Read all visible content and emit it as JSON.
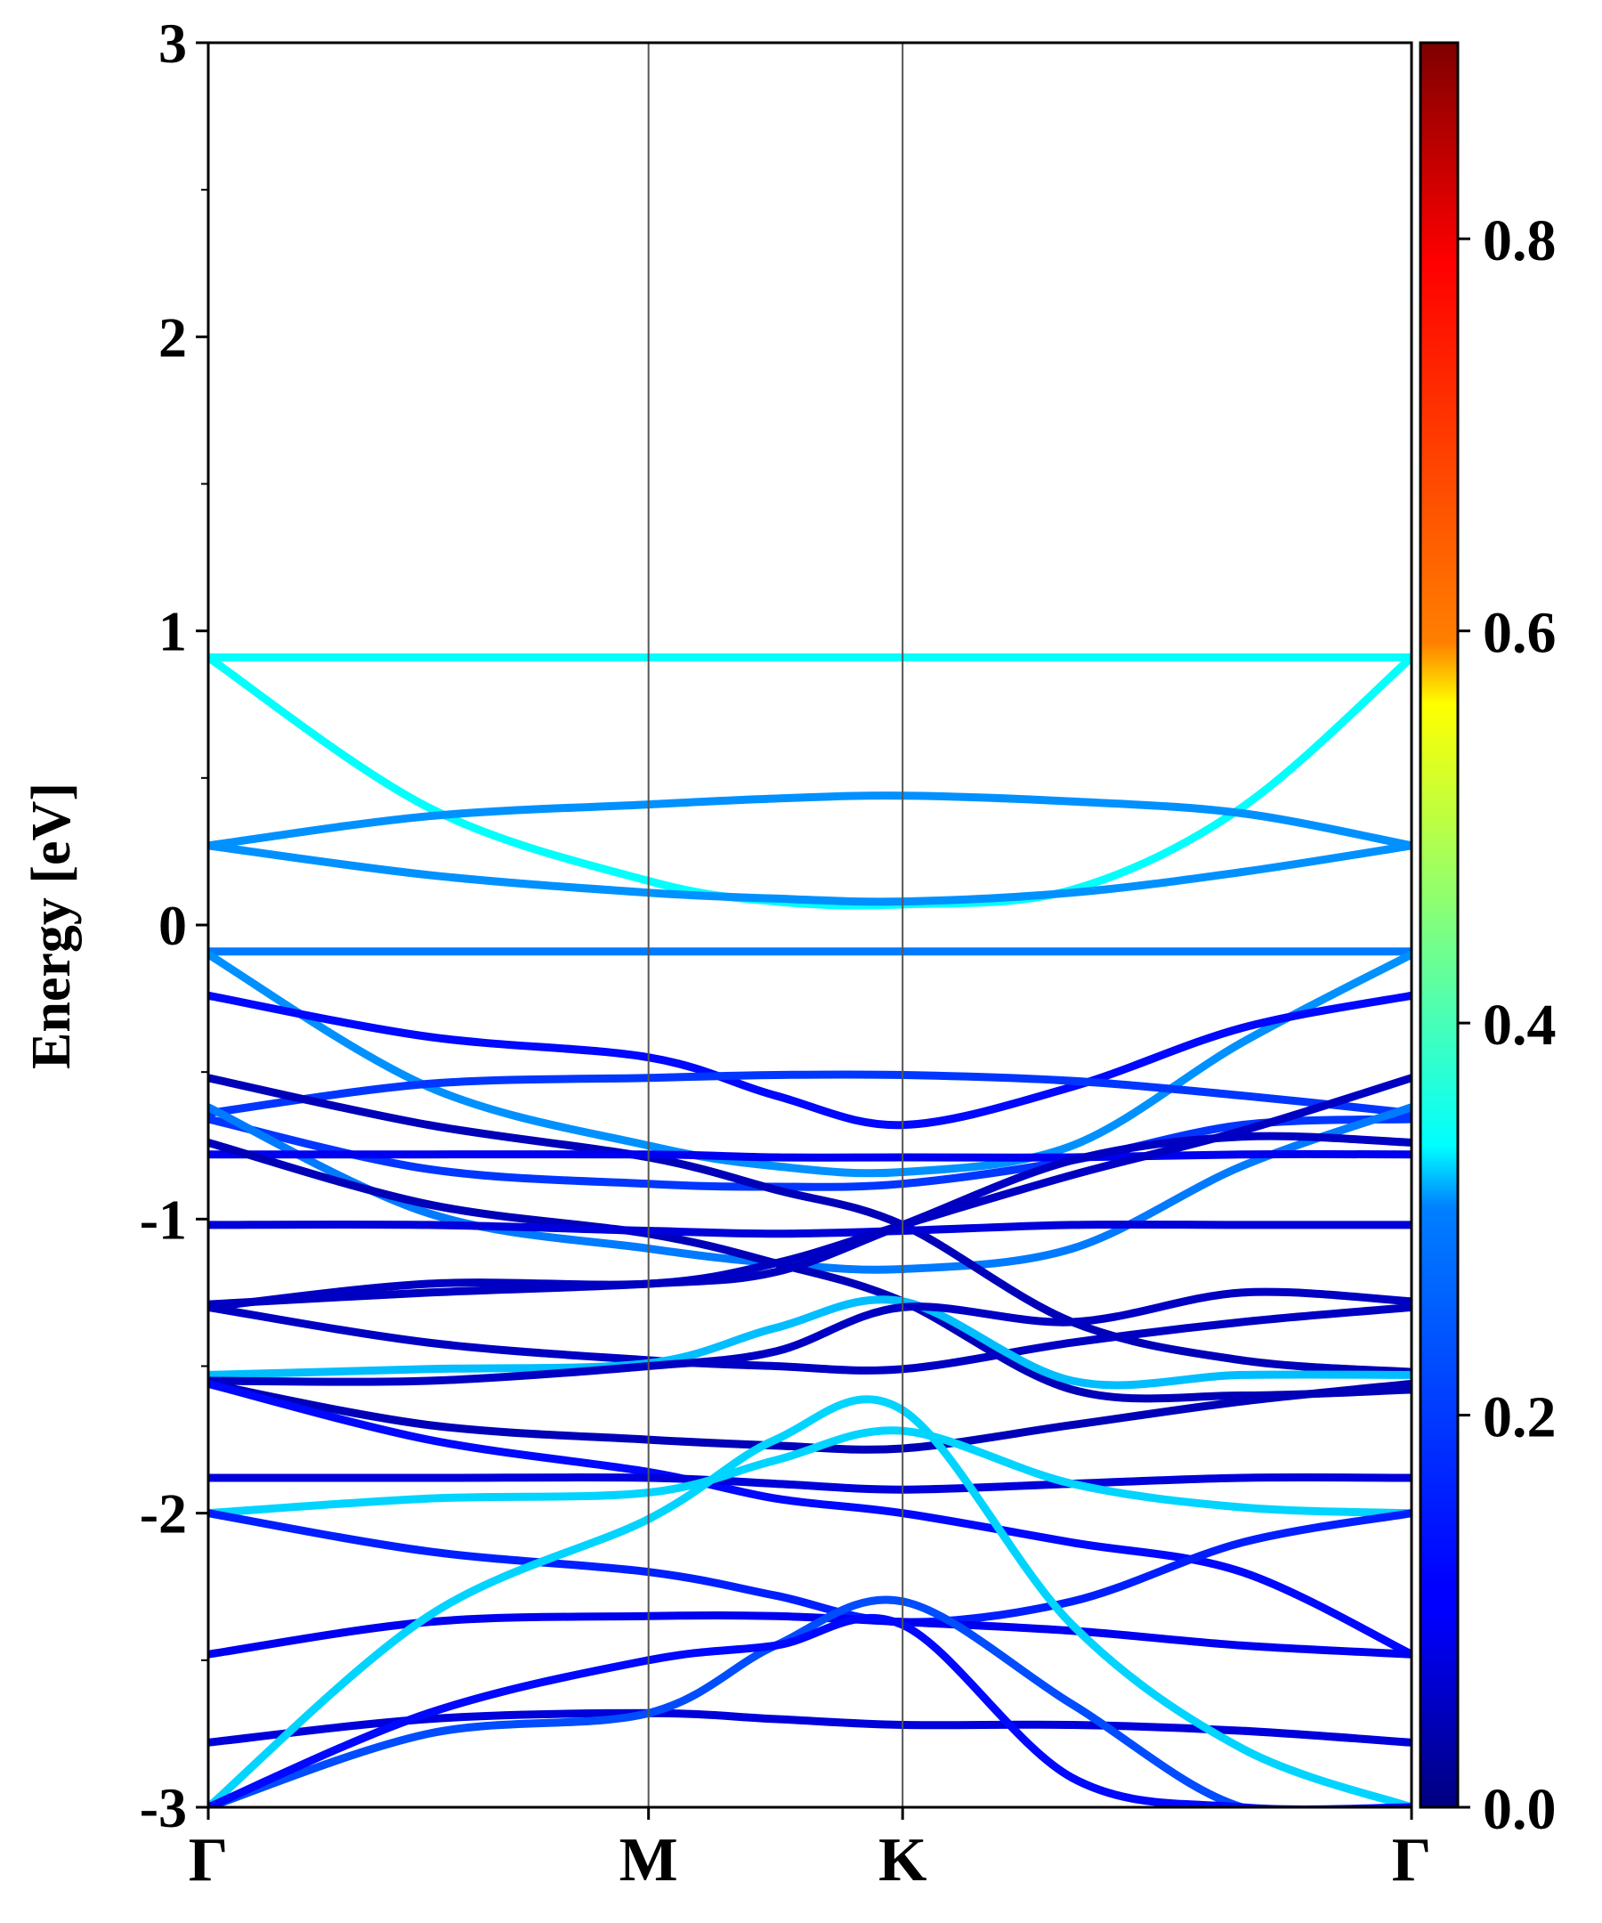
{
  "chart_data": {
    "type": "line",
    "title": "",
    "xlabel": "",
    "ylabel": "Energy [eV]",
    "ylim": [
      -3,
      3
    ],
    "x_ticks": [
      {
        "label": "Γ",
        "pos": 0.0
      },
      {
        "label": "M",
        "pos": 0.577
      },
      {
        "label": "K",
        "pos": 0.91
      },
      {
        "label": "Γ",
        "pos": 1.577
      }
    ],
    "y_ticks": [
      -3,
      -2,
      -1,
      0,
      1,
      2,
      3
    ],
    "y_tick_labels": [
      "-3",
      "-2",
      "-1",
      "0",
      "1",
      "2",
      "3"
    ],
    "colorbar": {
      "colormap": "jet",
      "range": [
        0.0,
        0.9
      ],
      "ticks": [
        0.0,
        0.2,
        0.4,
        0.6,
        0.8
      ],
      "tick_labels": [
        "0.0",
        "0.2",
        "0.4",
        "0.6",
        "0.8"
      ]
    },
    "bands": [
      {
        "c": 0.34,
        "y": [
          0.91,
          0.91,
          0.91,
          0.91,
          0.91,
          0.91,
          0.91,
          0.91
        ]
      },
      {
        "c": 0.34,
        "y": [
          0.91,
          0.4,
          0.15,
          0.08,
          0.07,
          0.12,
          0.4,
          0.91
        ]
      },
      {
        "c": 0.24,
        "y": [
          0.27,
          0.37,
          0.41,
          0.43,
          0.44,
          0.42,
          0.38,
          0.27
        ]
      },
      {
        "c": 0.24,
        "y": [
          0.27,
          0.17,
          0.11,
          0.09,
          0.08,
          0.11,
          0.18,
          0.27
        ]
      },
      {
        "c": 0.22,
        "y": [
          -0.09,
          -0.09,
          -0.09,
          -0.09,
          -0.09,
          -0.09,
          -0.09,
          -0.09
        ]
      },
      {
        "c": 0.24,
        "y": [
          -0.1,
          -0.55,
          -0.75,
          -0.82,
          -0.84,
          -0.75,
          -0.4,
          -0.1
        ]
      },
      {
        "c": 0.12,
        "y": [
          -0.24,
          -0.38,
          -0.45,
          -0.58,
          -0.68,
          -0.55,
          -0.35,
          -0.24
        ]
      },
      {
        "c": 0.16,
        "y": [
          -0.64,
          -0.54,
          -0.52,
          -0.51,
          -0.51,
          -0.53,
          -0.58,
          -0.64
        ]
      },
      {
        "c": 0.16,
        "y": [
          -0.66,
          -0.83,
          -0.88,
          -0.89,
          -0.88,
          -0.8,
          -0.68,
          -0.66
        ]
      },
      {
        "c": 0.22,
        "y": [
          -0.62,
          -0.98,
          -1.1,
          -1.15,
          -1.17,
          -1.1,
          -0.82,
          -0.62
        ]
      },
      {
        "c": 0.05,
        "y": [
          -0.52,
          -0.68,
          -0.79,
          -0.9,
          -1.02,
          -1.35,
          -1.48,
          -1.52
        ]
      },
      {
        "c": 0.1,
        "y": [
          -0.78,
          -0.78,
          -0.78,
          -0.79,
          -0.79,
          -0.79,
          -0.78,
          -0.78
        ]
      },
      {
        "c": 0.05,
        "y": [
          -0.74,
          -0.95,
          -1.05,
          -1.15,
          -1.28,
          -1.58,
          -1.6,
          -1.58
        ]
      },
      {
        "c": 0.08,
        "y": [
          -1.02,
          -1.02,
          -1.04,
          -1.05,
          -1.04,
          -1.02,
          -1.02,
          -1.02
        ]
      },
      {
        "c": 0.06,
        "y": [
          -1.3,
          -1.22,
          -1.22,
          -1.15,
          -1.02,
          -0.85,
          -0.7,
          -0.52
        ]
      },
      {
        "c": 0.06,
        "y": [
          -1.29,
          -1.25,
          -1.22,
          -1.18,
          -1.02,
          -0.8,
          -0.72,
          -0.74
        ]
      },
      {
        "c": 0.06,
        "y": [
          -1.3,
          -1.42,
          -1.48,
          -1.5,
          -1.51,
          -1.42,
          -1.35,
          -1.3
        ]
      },
      {
        "c": 0.28,
        "y": [
          -1.53,
          -1.51,
          -1.49,
          -1.37,
          -1.28,
          -1.55,
          -1.53,
          -1.53
        ]
      },
      {
        "c": 0.06,
        "y": [
          -1.55,
          -1.55,
          -1.5,
          -1.45,
          -1.3,
          -1.35,
          -1.25,
          -1.28
        ]
      },
      {
        "c": 0.05,
        "y": [
          -1.56,
          -1.7,
          -1.75,
          -1.77,
          -1.78,
          -1.7,
          -1.62,
          -1.56
        ]
      },
      {
        "c": 0.12,
        "y": [
          -1.56,
          -1.75,
          -1.86,
          -1.95,
          -2.0,
          -2.1,
          -2.2,
          -2.48
        ]
      },
      {
        "c": 0.08,
        "y": [
          -1.88,
          -1.88,
          -1.88,
          -1.9,
          -1.92,
          -1.9,
          -1.88,
          -1.88
        ]
      },
      {
        "c": 0.3,
        "y": [
          -2.0,
          -1.95,
          -1.93,
          -1.82,
          -1.72,
          -1.9,
          -1.98,
          -2.0
        ]
      },
      {
        "c": 0.14,
        "y": [
          -2.0,
          -2.13,
          -2.2,
          -2.28,
          -2.37,
          -2.3,
          -2.1,
          -2.0
        ]
      },
      {
        "c": 0.1,
        "y": [
          -2.48,
          -2.37,
          -2.35,
          -2.35,
          -2.37,
          -2.4,
          -2.45,
          -2.48
        ]
      },
      {
        "c": 0.08,
        "y": [
          -2.78,
          -2.7,
          -2.68,
          -2.7,
          -2.72,
          -2.72,
          -2.74,
          -2.78
        ]
      },
      {
        "c": 0.3,
        "y": [
          -3.0,
          -2.35,
          -2.02,
          -1.75,
          -1.65,
          -2.38,
          -2.8,
          -3.0
        ]
      },
      {
        "c": 0.18,
        "y": [
          -3.0,
          -2.75,
          -2.68,
          -2.45,
          -2.3,
          -2.65,
          -3.0,
          -3.0
        ]
      },
      {
        "c": 0.12,
        "y": [
          -3.0,
          -2.68,
          -2.5,
          -2.45,
          -2.38,
          -2.9,
          -3.0,
          -3.0
        ]
      }
    ]
  }
}
